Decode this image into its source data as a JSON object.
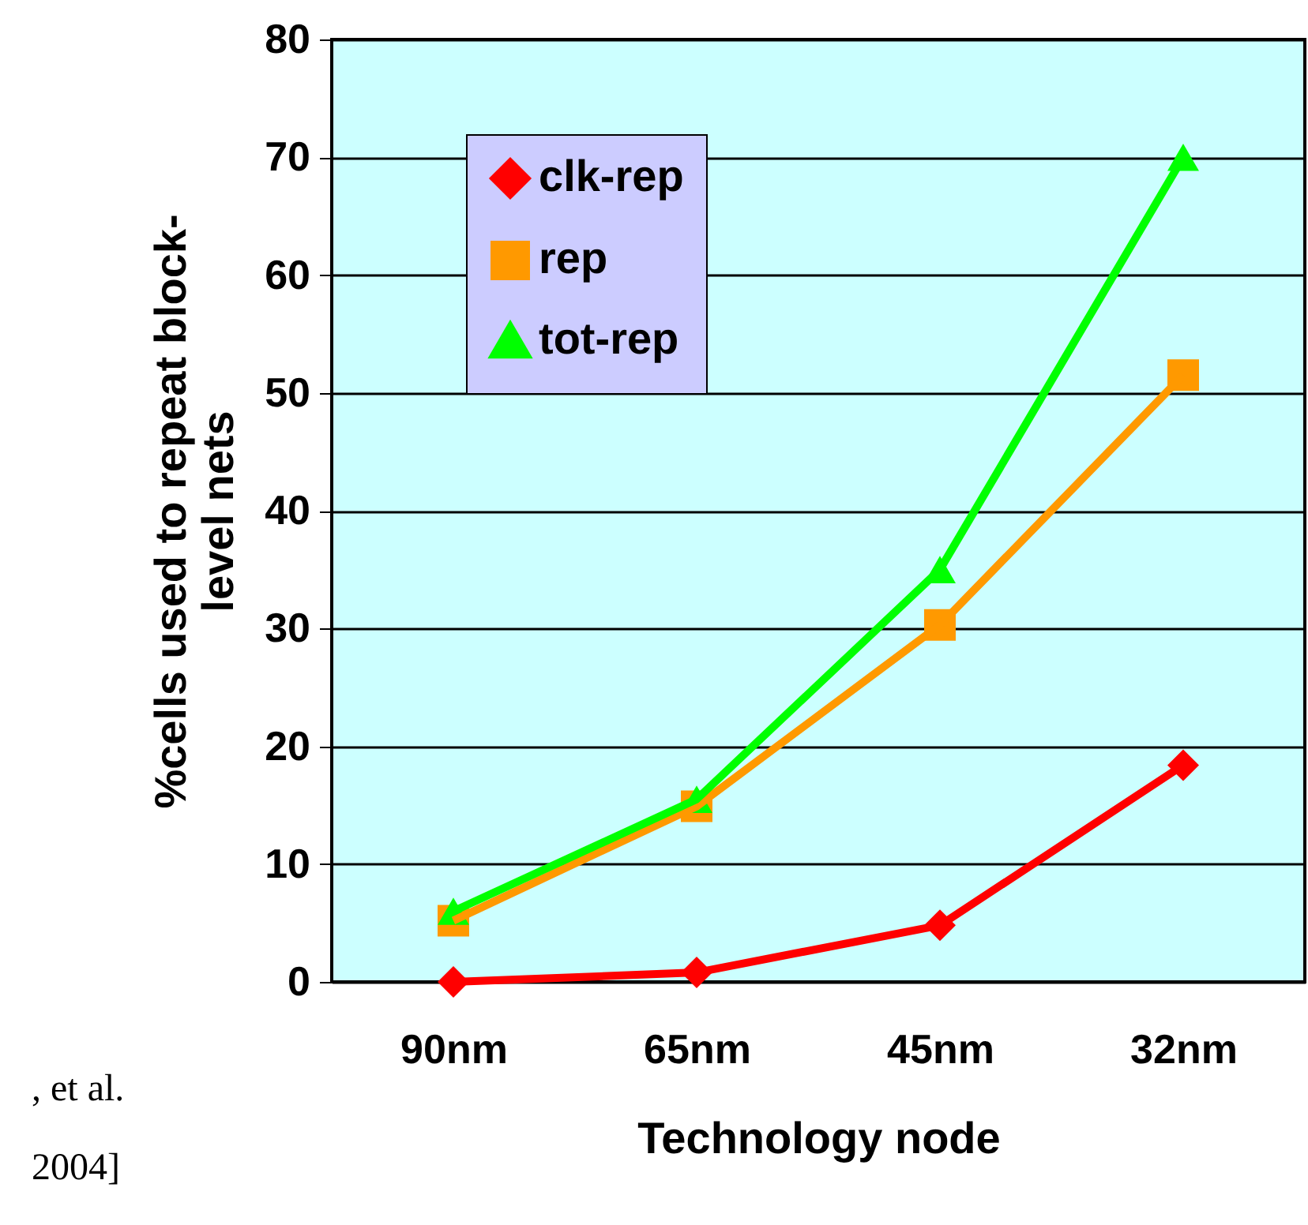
{
  "chart_data": {
    "type": "line",
    "xlabel": "Technology node",
    "ylabel": "%cells used to repeat block-\nlevel nets",
    "categories": [
      "90nm",
      "65nm",
      "45nm",
      "32nm"
    ],
    "series": [
      {
        "name": "clk-rep",
        "color": "#ff0000",
        "marker": "diamond",
        "values": [
          0,
          0.8,
          4.8,
          18.4
        ]
      },
      {
        "name": "rep",
        "color": "#ff9900",
        "marker": "square",
        "values": [
          5.2,
          14.9,
          30.3,
          51.5
        ]
      },
      {
        "name": "tot-rep",
        "color": "#00ff00",
        "marker": "triangle",
        "values": [
          6,
          15.5,
          35,
          70
        ]
      }
    ],
    "ylim": [
      0,
      80
    ],
    "yticks": [
      0,
      10,
      20,
      30,
      40,
      50,
      60,
      70,
      80
    ],
    "grid": "y",
    "legend": "top left",
    "annotations": [
      ", et al.",
      "2004]"
    ]
  }
}
